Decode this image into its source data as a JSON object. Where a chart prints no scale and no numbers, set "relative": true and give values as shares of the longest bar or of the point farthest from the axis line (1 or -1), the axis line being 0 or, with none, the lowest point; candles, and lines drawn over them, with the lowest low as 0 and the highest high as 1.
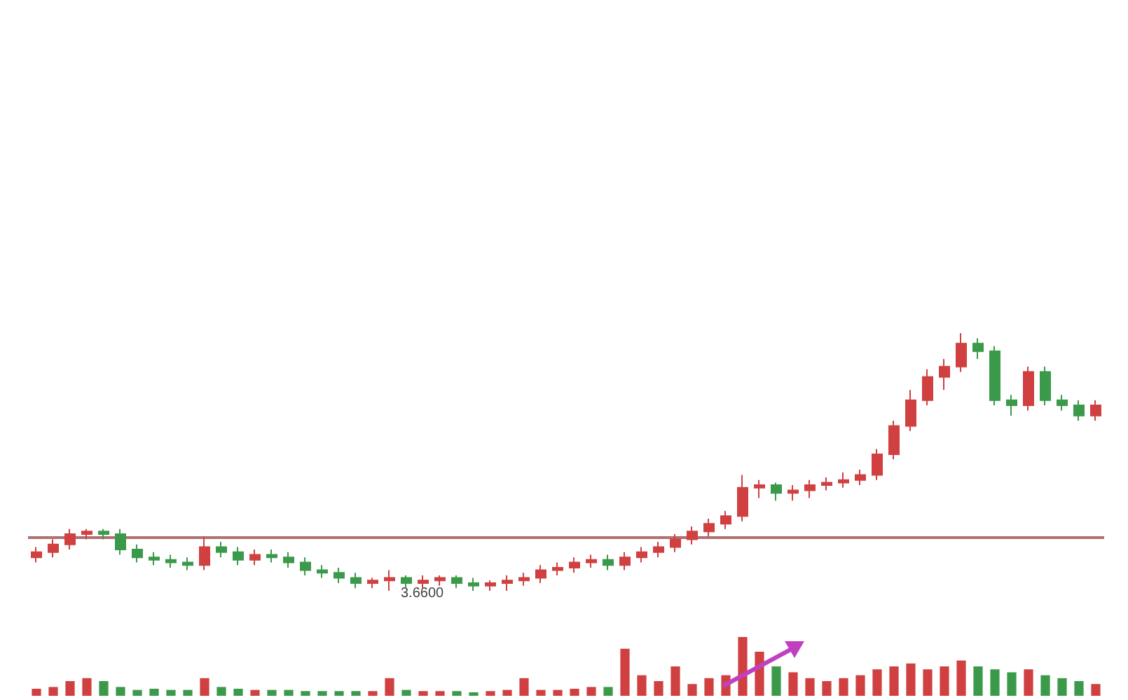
{
  "chart_data": [
    {
      "type": "candlestick",
      "relative": true,
      "categories": [
        null,
        null,
        null,
        null,
        null,
        null,
        null,
        null,
        null,
        null,
        null,
        null,
        null,
        null,
        null,
        null,
        null,
        null,
        null,
        null,
        null,
        null,
        null,
        null,
        null,
        null,
        null,
        null,
        null,
        null,
        null,
        null,
        null,
        null,
        null,
        null,
        null,
        null,
        null,
        null,
        null,
        null,
        null,
        null,
        null,
        null,
        null,
        null,
        null,
        null,
        null,
        null,
        null,
        null,
        null,
        null,
        null,
        null,
        null,
        null,
        null,
        null,
        null,
        null
      ],
      "ohlc": [
        [
          0.13,
          0.17,
          0.11,
          0.15
        ],
        [
          0.15,
          0.2,
          0.13,
          0.18
        ],
        [
          0.18,
          0.24,
          0.16,
          0.22
        ],
        [
          0.22,
          0.24,
          0.2,
          0.23
        ],
        [
          0.23,
          0.24,
          0.2,
          0.22
        ],
        [
          0.22,
          0.24,
          0.14,
          0.16
        ],
        [
          0.16,
          0.18,
          0.11,
          0.13
        ],
        [
          0.13,
          0.15,
          0.1,
          0.12
        ],
        [
          0.12,
          0.14,
          0.09,
          0.11
        ],
        [
          0.11,
          0.13,
          0.08,
          0.1
        ],
        [
          0.1,
          0.21,
          0.08,
          0.17
        ],
        [
          0.17,
          0.19,
          0.13,
          0.15
        ],
        [
          0.15,
          0.17,
          0.1,
          0.12
        ],
        [
          0.12,
          0.16,
          0.1,
          0.14
        ],
        [
          0.14,
          0.16,
          0.11,
          0.13
        ],
        [
          0.13,
          0.15,
          0.09,
          0.11
        ],
        [
          0.11,
          0.13,
          0.06,
          0.08
        ],
        [
          0.08,
          0.1,
          0.05,
          0.07
        ],
        [
          0.07,
          0.09,
          0.03,
          0.05
        ],
        [
          0.05,
          0.07,
          0.01,
          0.03
        ],
        [
          0.03,
          0.05,
          0.01,
          0.04
        ],
        [
          0.04,
          0.08,
          0,
          0.05
        ],
        [
          0.05,
          0.06,
          0.01,
          0.03
        ],
        [
          0.03,
          0.06,
          0.01,
          0.04
        ],
        [
          0.04,
          0.06,
          0.02,
          0.05
        ],
        [
          0.05,
          0.06,
          0.01,
          0.03
        ],
        [
          0.03,
          0.05,
          0,
          0.02
        ],
        [
          0.02,
          0.04,
          0,
          0.03
        ],
        [
          0.03,
          0.06,
          0,
          0.04
        ],
        [
          0.04,
          0.07,
          0.02,
          0.05
        ],
        [
          0.05,
          0.1,
          0.03,
          0.08
        ],
        [
          0.08,
          0.11,
          0.06,
          0.09
        ],
        [
          0.09,
          0.13,
          0.07,
          0.11
        ],
        [
          0.11,
          0.14,
          0.09,
          0.12
        ],
        [
          0.12,
          0.14,
          0.08,
          0.1
        ],
        [
          0.1,
          0.15,
          0.08,
          0.13
        ],
        [
          0.13,
          0.17,
          0.11,
          0.15
        ],
        [
          0.15,
          0.19,
          0.13,
          0.17
        ],
        [
          0.17,
          0.22,
          0.15,
          0.2
        ],
        [
          0.2,
          0.25,
          0.18,
          0.23
        ],
        [
          0.23,
          0.28,
          0.21,
          0.26
        ],
        [
          0.26,
          0.31,
          0.24,
          0.29
        ],
        [
          0.29,
          0.45,
          0.27,
          0.4
        ],
        [
          0.4,
          0.43,
          0.36,
          0.41
        ],
        [
          0.41,
          0.42,
          0.35,
          0.38
        ],
        [
          0.38,
          0.41,
          0.35,
          0.39
        ],
        [
          0.39,
          0.43,
          0.36,
          0.41
        ],
        [
          0.41,
          0.44,
          0.39,
          0.42
        ],
        [
          0.42,
          0.46,
          0.4,
          0.43
        ],
        [
          0.43,
          0.47,
          0.41,
          0.45
        ],
        [
          0.45,
          0.55,
          0.43,
          0.53
        ],
        [
          0.53,
          0.66,
          0.51,
          0.64
        ],
        [
          0.64,
          0.78,
          0.62,
          0.74
        ],
        [
          0.74,
          0.86,
          0.72,
          0.83
        ],
        [
          0.83,
          0.9,
          0.78,
          0.87
        ],
        [
          0.87,
          1,
          0.85,
          0.96
        ],
        [
          0.96,
          0.98,
          0.9,
          0.93
        ],
        [
          0.93,
          0.95,
          0.72,
          0.74
        ],
        [
          0.74,
          0.76,
          0.68,
          0.72
        ],
        [
          0.72,
          0.87,
          0.7,
          0.85
        ],
        [
          0.85,
          0.87,
          0.72,
          0.74
        ],
        [
          0.74,
          0.76,
          0.7,
          0.72
        ],
        [
          0.72,
          0.74,
          0.66,
          0.68
        ],
        [
          0.68,
          0.74,
          0.66,
          0.72
        ]
      ],
      "colors": [
        "#d04040",
        "#d04040",
        "#d04040",
        "#d04040",
        "#3a9a4a",
        "#3a9a4a",
        "#3a9a4a",
        "#3a9a4a",
        "#3a9a4a",
        "#3a9a4a",
        "#d04040",
        "#3a9a4a",
        "#3a9a4a",
        "#d04040",
        "#3a9a4a",
        "#3a9a4a",
        "#3a9a4a",
        "#3a9a4a",
        "#3a9a4a",
        "#3a9a4a",
        "#d04040",
        "#d04040",
        "#3a9a4a",
        "#d04040",
        "#d04040",
        "#3a9a4a",
        "#3a9a4a",
        "#d04040",
        "#d04040",
        "#d04040",
        "#d04040",
        "#d04040",
        "#d04040",
        "#d04040",
        "#3a9a4a",
        "#d04040",
        "#d04040",
        "#d04040",
        "#d04040",
        "#d04040",
        "#d04040",
        "#d04040",
        "#d04040",
        "#d04040",
        "#3a9a4a",
        "#d04040",
        "#d04040",
        "#d04040",
        "#d04040",
        "#d04040",
        "#d04040",
        "#d04040",
        "#d04040",
        "#d04040",
        "#d04040",
        "#d04040",
        "#3a9a4a",
        "#3a9a4a",
        "#3a9a4a",
        "#d04040",
        "#3a9a4a",
        "#3a9a4a",
        "#3a9a4a",
        "#d04040"
      ],
      "ref_lines": [
        {
          "axis": "y",
          "value": 0.21,
          "color": "#b07070"
        }
      ],
      "annotations": [
        "3.6600"
      ]
    },
    {
      "type": "bar",
      "relative": true,
      "categories": [
        null,
        null,
        null,
        null,
        null,
        null,
        null,
        null,
        null,
        null,
        null,
        null,
        null,
        null,
        null,
        null,
        null,
        null,
        null,
        null,
        null,
        null,
        null,
        null,
        null,
        null,
        null,
        null,
        null,
        null,
        null,
        null,
        null,
        null,
        null,
        null,
        null,
        null,
        null,
        null,
        null,
        null,
        null,
        null,
        null,
        null,
        null,
        null,
        null,
        null,
        null,
        null,
        null,
        null,
        null,
        null,
        null,
        null,
        null,
        null,
        null,
        null,
        null,
        null
      ],
      "values": [
        0.12,
        0.15,
        0.25,
        0.3,
        0.25,
        0.15,
        0.1,
        0.12,
        0.1,
        0.1,
        0.3,
        0.15,
        0.12,
        0.1,
        0.1,
        0.1,
        0.08,
        0.08,
        0.08,
        0.08,
        0.08,
        0.3,
        0.1,
        0.08,
        0.08,
        0.08,
        0.06,
        0.08,
        0.1,
        0.3,
        0.1,
        0.1,
        0.12,
        0.15,
        0.15,
        0.8,
        0.35,
        0.25,
        0.5,
        0.2,
        0.3,
        0.35,
        1,
        0.75,
        0.5,
        0.4,
        0.3,
        0.25,
        0.3,
        0.35,
        0.45,
        0.5,
        0.55,
        0.45,
        0.5,
        0.6,
        0.5,
        0.45,
        0.4,
        0.45,
        0.35,
        0.3,
        0.25,
        0.2
      ],
      "colors": [
        "#d04040",
        "#d04040",
        "#d04040",
        "#d04040",
        "#3a9a4a",
        "#3a9a4a",
        "#3a9a4a",
        "#3a9a4a",
        "#3a9a4a",
        "#3a9a4a",
        "#d04040",
        "#3a9a4a",
        "#3a9a4a",
        "#d04040",
        "#3a9a4a",
        "#3a9a4a",
        "#3a9a4a",
        "#3a9a4a",
        "#3a9a4a",
        "#3a9a4a",
        "#d04040",
        "#d04040",
        "#3a9a4a",
        "#d04040",
        "#d04040",
        "#3a9a4a",
        "#3a9a4a",
        "#d04040",
        "#d04040",
        "#d04040",
        "#d04040",
        "#d04040",
        "#d04040",
        "#d04040",
        "#3a9a4a",
        "#d04040",
        "#d04040",
        "#d04040",
        "#d04040",
        "#d04040",
        "#d04040",
        "#d04040",
        "#d04040",
        "#d04040",
        "#3a9a4a",
        "#d04040",
        "#d04040",
        "#d04040",
        "#d04040",
        "#d04040",
        "#d04040",
        "#d04040",
        "#d04040",
        "#d04040",
        "#d04040",
        "#d04040",
        "#3a9a4a",
        "#3a9a4a",
        "#3a9a4a",
        "#d04040",
        "#3a9a4a",
        "#3a9a4a",
        "#3a9a4a",
        "#d04040"
      ]
    }
  ]
}
